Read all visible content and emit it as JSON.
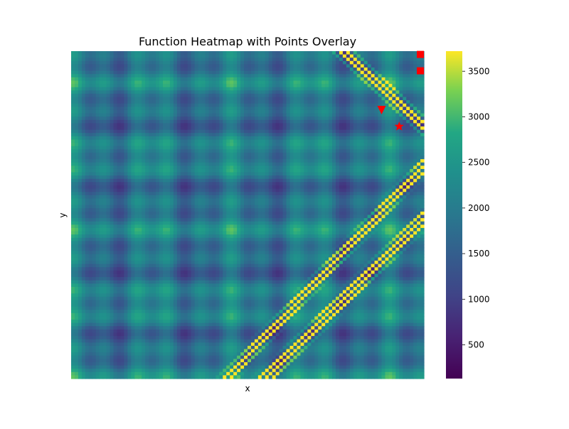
{
  "chart_data": {
    "type": "heatmap",
    "title": "Function Heatmap with Points Overlay",
    "xlabel": "x",
    "ylabel": "y",
    "colormap": "viridis",
    "colorbar": {
      "range": [
        130,
        3720
      ],
      "ticks": [
        500,
        1000,
        1500,
        2000,
        2500,
        3000,
        3500
      ],
      "tick_labels": [
        "500",
        "1000",
        "1500",
        "2000",
        "2500",
        "3000",
        "3500"
      ]
    },
    "grid": false,
    "legend": "none",
    "x_ticks_shown": false,
    "y_ticks_shown": false,
    "heatmap": {
      "description_pattern": "interference rings/diagonal bands",
      "resolution": 100
    },
    "points": [
      {
        "marker": "square",
        "color": "#ff0000",
        "x": 99,
        "y": 99
      },
      {
        "marker": "square",
        "color": "#ff0000",
        "x": 99,
        "y": 94
      },
      {
        "marker": "triangle-down",
        "color": "#ff0000",
        "x": 88,
        "y": 82
      },
      {
        "marker": "star",
        "color": "#ff0000",
        "x": 93,
        "y": 77
      }
    ],
    "data_extent": {
      "xlim": [
        0,
        100
      ],
      "ylim": [
        0,
        100
      ]
    }
  }
}
